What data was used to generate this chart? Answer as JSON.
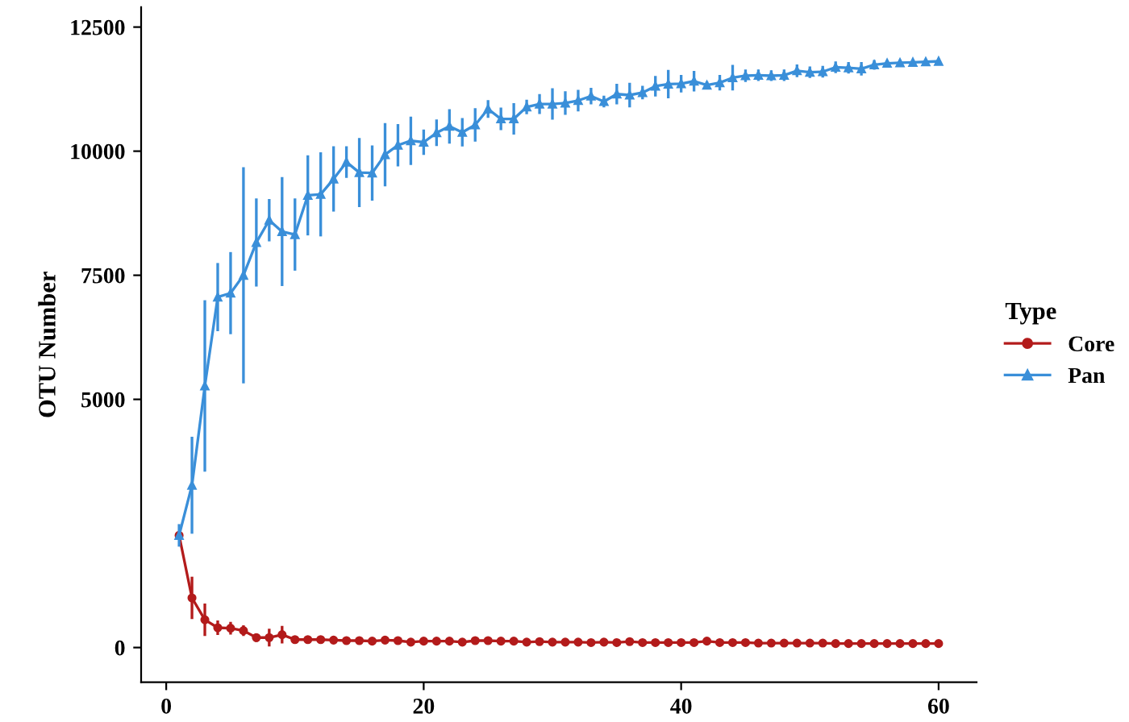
{
  "chart_data": {
    "type": "line",
    "ylabel": "OTU Number",
    "legend_title": "Type",
    "legend": "right",
    "grid": false,
    "x": [
      1,
      2,
      3,
      4,
      5,
      6,
      7,
      8,
      9,
      10,
      11,
      12,
      13,
      14,
      15,
      16,
      17,
      18,
      19,
      20,
      21,
      22,
      23,
      24,
      25,
      26,
      27,
      28,
      29,
      30,
      31,
      32,
      33,
      34,
      35,
      36,
      37,
      38,
      39,
      40,
      41,
      42,
      43,
      44,
      45,
      46,
      47,
      48,
      49,
      50,
      51,
      52,
      53,
      54,
      55,
      56,
      57,
      58,
      59,
      60
    ],
    "xlim": [
      -1.95,
      62.95
    ],
    "xticks": [
      0,
      20,
      40,
      60
    ],
    "ylim": [
      -700,
      12900
    ],
    "yticks": [
      0,
      5000,
      7500,
      10000,
      12500
    ],
    "series": [
      {
        "name": "Core",
        "color": "#b31b1b",
        "marker": "circle",
        "values": [
          2260,
          1000,
          560,
          400,
          390,
          340,
          200,
          200,
          260,
          160,
          160,
          160,
          150,
          140,
          140,
          130,
          150,
          140,
          110,
          130,
          130,
          130,
          110,
          140,
          140,
          130,
          130,
          110,
          120,
          110,
          110,
          110,
          100,
          110,
          100,
          120,
          100,
          100,
          100,
          100,
          100,
          130,
          100,
          100,
          100,
          90,
          90,
          90,
          90,
          90,
          90,
          80,
          80,
          80,
          80,
          80,
          80,
          80,
          80,
          80
        ],
        "errors": [
          null,
          400,
          300,
          120,
          100,
          80,
          60,
          150,
          150,
          null,
          null,
          null,
          null,
          null,
          null,
          null,
          null,
          null,
          null,
          null,
          null,
          null,
          null,
          null,
          null,
          null,
          null,
          null,
          null,
          null,
          null,
          null,
          null,
          null,
          null,
          null,
          null,
          null,
          null,
          null,
          null,
          null,
          null,
          null,
          null,
          null,
          null,
          null,
          null,
          null,
          null,
          null,
          null,
          null,
          null,
          null,
          null,
          null,
          null,
          null
        ]
      },
      {
        "name": "Pan",
        "color": "#3a8fd9",
        "marker": "triangle",
        "values": [
          2260,
          3270,
          5270,
          7060,
          7140,
          7500,
          8160,
          8610,
          8380,
          8320,
          9110,
          9130,
          9440,
          9780,
          9570,
          9560,
          9930,
          10120,
          10210,
          10180,
          10370,
          10500,
          10380,
          10530,
          10850,
          10650,
          10650,
          10890,
          10950,
          10950,
          10970,
          11020,
          11110,
          11000,
          11150,
          11130,
          11180,
          11310,
          11350,
          11360,
          11410,
          11330,
          11380,
          11480,
          11520,
          11530,
          11520,
          11530,
          11620,
          11590,
          11600,
          11690,
          11680,
          11660,
          11740,
          11770,
          11780,
          11790,
          11800,
          11810
        ],
        "errors": [
          200,
          950,
          1700,
          660,
          800,
          2150,
          860,
          400,
          1070,
          700,
          780,
          820,
          630,
          290,
          670,
          530,
          610,
          400,
          460,
          230,
          240,
          320,
          260,
          310,
          150,
          200,
          290,
          120,
          175,
          290,
          210,
          190,
          140,
          90,
          180,
          220,
          110,
          180,
          260,
          150,
          180,
          50,
          130,
          230,
          100,
          90,
          80,
          90,
          100,
          90,
          90,
          90,
          90,
          110,
          70,
          30,
          30,
          30,
          30,
          30
        ]
      }
    ]
  }
}
